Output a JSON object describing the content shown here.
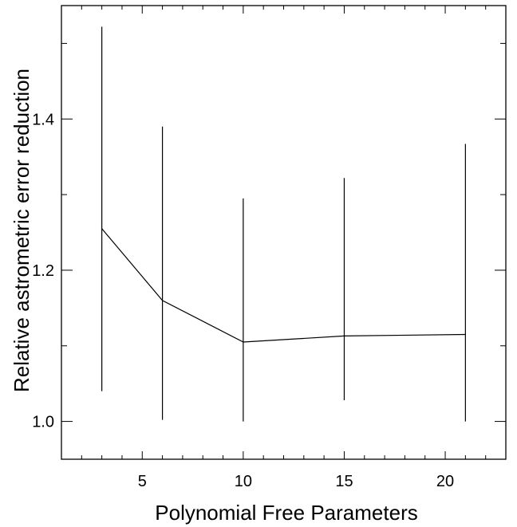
{
  "chart_data": {
    "type": "line",
    "xlabel": "Polynomial Free Parameters",
    "ylabel": "Relative astrometric error reduction",
    "xlim": [
      1,
      23
    ],
    "ylim": [
      0.95,
      1.55
    ],
    "xticks": [
      5,
      10,
      15,
      20
    ],
    "yticks": [
      1.0,
      1.2,
      1.4
    ],
    "xtick_labels": [
      "5",
      "10",
      "15",
      "20"
    ],
    "ytick_labels": [
      "1.0",
      "1.2",
      "1.4"
    ],
    "grid": false,
    "legend": "none",
    "line_color": "#000000",
    "series": [
      {
        "x": [
          3,
          6,
          10,
          15,
          21
        ],
        "y": [
          1.255,
          1.16,
          1.105,
          1.113,
          1.115
        ],
        "err_low": [
          1.04,
          1.002,
          1.0,
          1.028,
          1.0
        ],
        "err_high": [
          1.522,
          1.39,
          1.295,
          1.322,
          1.367
        ]
      }
    ]
  }
}
